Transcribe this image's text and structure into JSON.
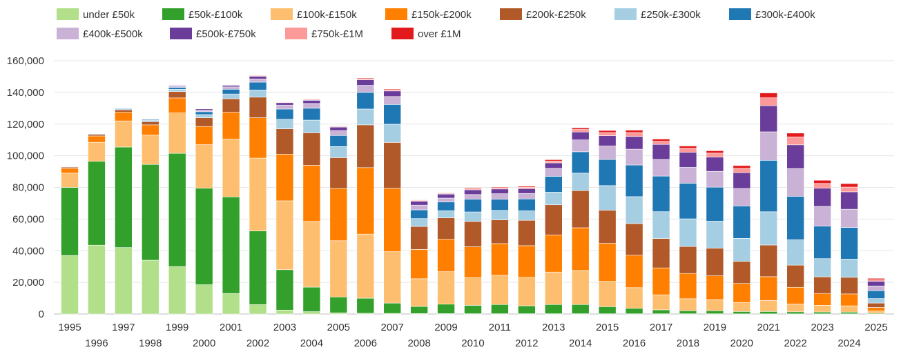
{
  "chart_data": {
    "type": "bar",
    "stacked": true,
    "title": "",
    "xlabel": "",
    "ylabel": "",
    "ylim": [
      0,
      160000
    ],
    "yticks": [
      0,
      20000,
      40000,
      60000,
      80000,
      100000,
      120000,
      140000,
      160000
    ],
    "ytick_labels": [
      "0",
      "20,000",
      "40,000",
      "60,000",
      "80,000",
      "100,000",
      "120,000",
      "140,000",
      "160,000"
    ],
    "grid": true,
    "legend_position": "top",
    "categories": [
      "1995",
      "1996",
      "1997",
      "1998",
      "1999",
      "2000",
      "2001",
      "2002",
      "2003",
      "2004",
      "2005",
      "2006",
      "2007",
      "2008",
      "2009",
      "2010",
      "2011",
      "2012",
      "2013",
      "2014",
      "2015",
      "2016",
      "2017",
      "2018",
      "2019",
      "2020",
      "2021",
      "2022",
      "2023",
      "2024",
      "2025"
    ],
    "series": [
      {
        "name": "under £50k",
        "color": "#b2df8a",
        "values": [
          37000,
          43500,
          42000,
          34000,
          30000,
          18500,
          13000,
          6000,
          2500,
          1500,
          800,
          500,
          400,
          300,
          250,
          200,
          200,
          200,
          200,
          200,
          150,
          150,
          150,
          150,
          150,
          100,
          100,
          100,
          100,
          100,
          50
        ]
      },
      {
        "name": "£50k-£100k",
        "color": "#33a02c",
        "values": [
          43000,
          53000,
          63500,
          60500,
          71500,
          61000,
          61000,
          46500,
          25500,
          15500,
          10000,
          9500,
          6500,
          4500,
          6000,
          5300,
          5800,
          5000,
          5800,
          5800,
          4500,
          3500,
          2500,
          2000,
          2000,
          1500,
          1500,
          1300,
          1200,
          1100,
          500
        ]
      },
      {
        "name": "£100k-£150k",
        "color": "#fdbf6f",
        "values": [
          9000,
          12000,
          16500,
          18500,
          25500,
          27500,
          36500,
          46000,
          43500,
          41500,
          35500,
          40500,
          32500,
          17500,
          20500,
          17500,
          18500,
          18000,
          20500,
          21500,
          16000,
          13000,
          9500,
          7500,
          7000,
          5700,
          7000,
          5000,
          4200,
          4000,
          1400
        ]
      },
      {
        "name": "£150k-£200k",
        "color": "#ff7f00",
        "values": [
          3000,
          4000,
          5500,
          6500,
          9500,
          11500,
          17000,
          25500,
          29500,
          35500,
          33000,
          42000,
          40000,
          18500,
          20500,
          19500,
          20000,
          20000,
          23500,
          27000,
          24000,
          20500,
          17000,
          16000,
          15000,
          12000,
          15000,
          10500,
          7500,
          7500,
          2200
        ]
      },
      {
        "name": "£200k-£250k",
        "color": "#b15928",
        "values": [
          800,
          1000,
          1500,
          2000,
          4000,
          5500,
          8500,
          13000,
          16000,
          20500,
          19500,
          27000,
          29000,
          14500,
          13500,
          16000,
          15000,
          16000,
          19000,
          23500,
          21000,
          20000,
          18500,
          17000,
          17500,
          14000,
          20000,
          14000,
          10500,
          10500,
          2800
        ]
      },
      {
        "name": "£250k-£300k",
        "color": "#a6cee3",
        "values": [
          300,
          400,
          600,
          800,
          1500,
          2000,
          3000,
          4500,
          6000,
          8000,
          7000,
          10000,
          11500,
          5000,
          4500,
          6000,
          6000,
          6000,
          8000,
          11000,
          15500,
          17000,
          17000,
          17500,
          17000,
          14500,
          21000,
          16000,
          11500,
          11500,
          2800
        ]
      },
      {
        "name": "£300k-£400k",
        "color": "#1f78b4",
        "values": [
          200,
          300,
          400,
          600,
          1200,
          1800,
          3000,
          5000,
          6500,
          7500,
          7000,
          10500,
          12500,
          5500,
          5500,
          8000,
          7000,
          7500,
          10000,
          13500,
          16500,
          20000,
          22500,
          22500,
          21500,
          20500,
          32500,
          27500,
          20500,
          20000,
          5000
        ]
      },
      {
        "name": "£400k-£500k",
        "color": "#cab2d6",
        "values": [
          100,
          150,
          200,
          300,
          700,
          1000,
          1500,
          2000,
          2500,
          3000,
          3000,
          4500,
          5000,
          3000,
          2500,
          3000,
          3500,
          3500,
          5000,
          7500,
          8500,
          10000,
          10500,
          10000,
          10000,
          11000,
          18000,
          17500,
          12500,
          11500,
          3000
        ]
      },
      {
        "name": "£500k-£750k",
        "color": "#6a3d9a",
        "values": [
          80,
          100,
          200,
          250,
          500,
          800,
          1000,
          1700,
          1500,
          2000,
          2300,
          3500,
          3500,
          2500,
          2500,
          3000,
          3000,
          3000,
          3500,
          5000,
          6500,
          8000,
          9500,
          9500,
          9000,
          10000,
          16500,
          15000,
          11500,
          11000,
          3000
        ]
      },
      {
        "name": "£750k-£1M",
        "color": "#fb9a99",
        "values": [
          30,
          30,
          50,
          60,
          150,
          150,
          300,
          500,
          400,
          500,
          400,
          700,
          800,
          500,
          500,
          800,
          800,
          900,
          1200,
          1600,
          2000,
          2500,
          2000,
          2500,
          2500,
          2700,
          5000,
          5000,
          3000,
          3000,
          1000
        ]
      },
      {
        "name": "over £1M",
        "color": "#e31a1c",
        "values": [
          20,
          20,
          30,
          40,
          80,
          100,
          150,
          250,
          200,
          300,
          300,
          500,
          500,
          300,
          300,
          500,
          500,
          600,
          800,
          1000,
          1300,
          1500,
          1400,
          1500,
          1500,
          1800,
          3000,
          2400,
          2000,
          2200,
          800
        ]
      }
    ]
  }
}
